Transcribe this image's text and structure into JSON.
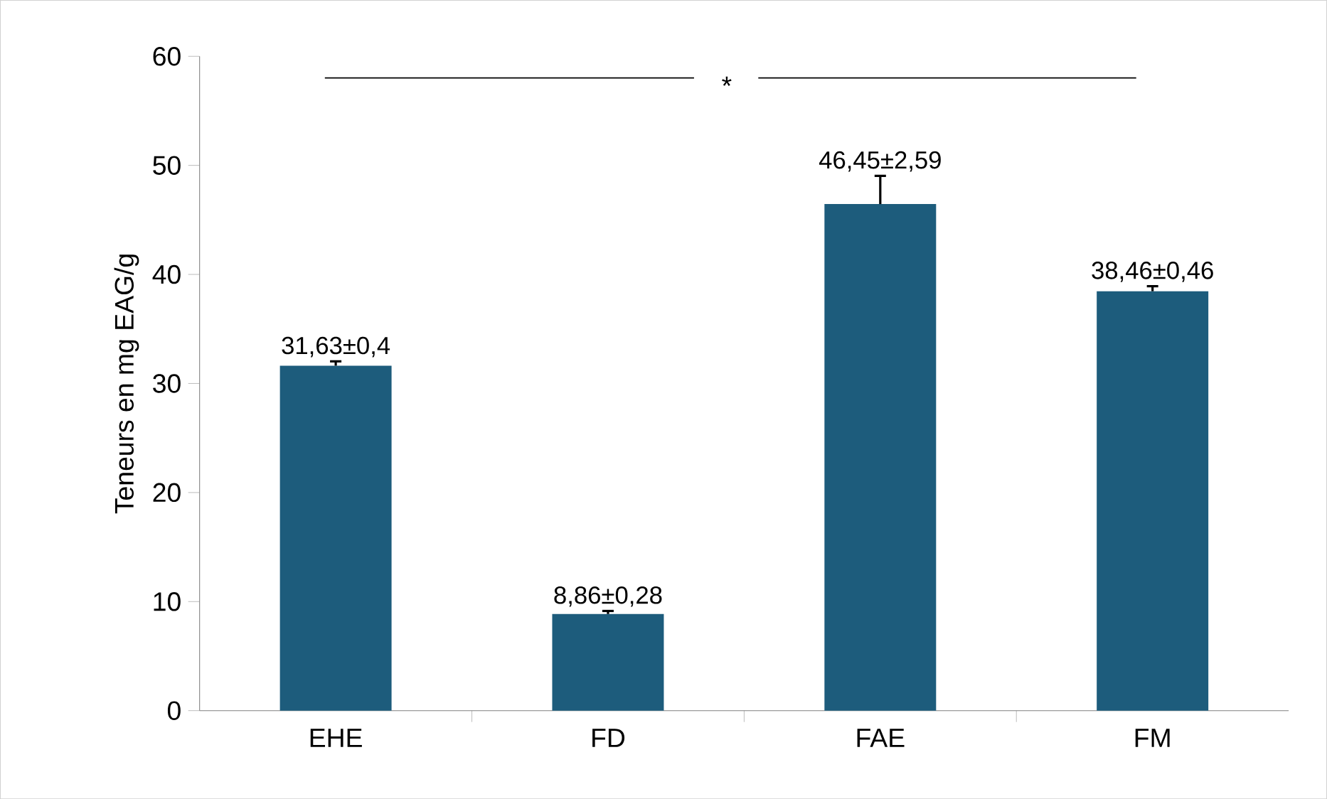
{
  "chart_data": {
    "type": "bar",
    "ylabel": "Teneurs en  mg EAG/g",
    "categories": [
      "EHE",
      "FD",
      "FAE",
      "FM"
    ],
    "values": [
      31.63,
      8.86,
      46.45,
      38.46
    ],
    "errors": [
      0.4,
      0.28,
      2.59,
      0.46
    ],
    "value_labels": [
      "31,63±0,4",
      "8,86±0,28",
      "46,45±2,59",
      "38,46±0,46"
    ],
    "color": "#1d5c7c",
    "ylim": [
      0,
      60
    ],
    "yticks": [
      0,
      10,
      20,
      30,
      40,
      50,
      60
    ],
    "annotations": [
      "*"
    ],
    "grid": false
  }
}
